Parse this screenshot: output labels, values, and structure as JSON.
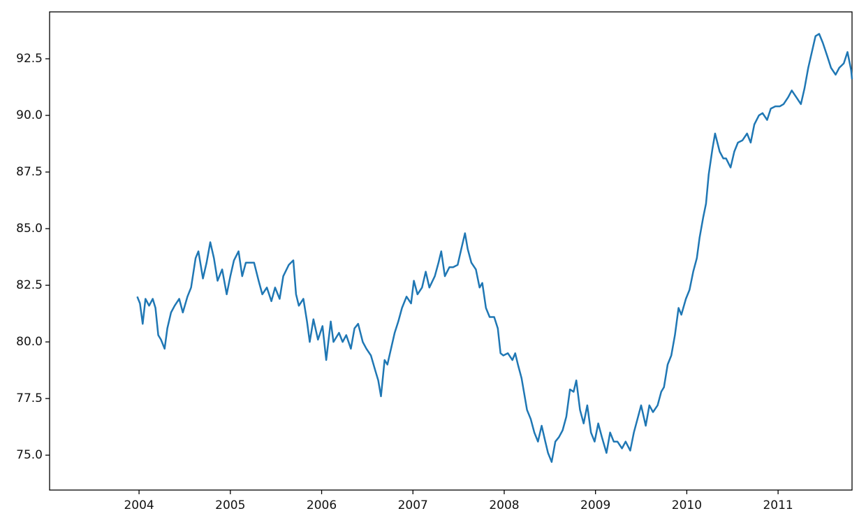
{
  "chart_data": {
    "type": "line",
    "x": [
      2003.98,
      2004.01,
      2004.04,
      2004.07,
      2004.11,
      2004.15,
      2004.18,
      2004.21,
      2004.24,
      2004.28,
      2004.31,
      2004.35,
      2004.39,
      2004.44,
      2004.48,
      2004.53,
      2004.57,
      2004.62,
      2004.65,
      2004.7,
      2004.74,
      2004.78,
      2004.82,
      2004.86,
      2004.91,
      2004.96,
      2005.0,
      2005.04,
      2005.09,
      2005.13,
      2005.17,
      2005.22,
      2005.26,
      2005.31,
      2005.35,
      2005.4,
      2005.45,
      2005.49,
      2005.54,
      2005.58,
      2005.64,
      2005.69,
      2005.72,
      2005.75,
      2005.8,
      2005.84,
      2005.87,
      2005.91,
      2005.96,
      2006.01,
      2006.05,
      2006.1,
      2006.13,
      2006.19,
      2006.23,
      2006.27,
      2006.32,
      2006.36,
      2006.4,
      2006.45,
      2006.49,
      2006.54,
      2006.59,
      2006.62,
      2006.65,
      2006.69,
      2006.72,
      2006.76,
      2006.8,
      2006.84,
      2006.88,
      2006.93,
      2006.98,
      2007.01,
      2007.05,
      2007.1,
      2007.14,
      2007.18,
      2007.24,
      2007.28,
      2007.31,
      2007.35,
      2007.4,
      2007.44,
      2007.49,
      2007.53,
      2007.57,
      2007.6,
      2007.64,
      2007.69,
      2007.73,
      2007.76,
      2007.8,
      2007.84,
      2007.89,
      2007.93,
      2007.96,
      2007.99,
      2008.04,
      2008.09,
      2008.12,
      2008.15,
      2008.19,
      2008.22,
      2008.25,
      2008.29,
      2008.33,
      2008.37,
      2008.41,
      2008.45,
      2008.48,
      2008.52,
      2008.56,
      2008.6,
      2008.64,
      2008.68,
      2008.72,
      2008.76,
      2008.79,
      2008.83,
      2008.87,
      2008.91,
      2008.95,
      2008.99,
      2009.03,
      2009.07,
      2009.12,
      2009.16,
      2009.2,
      2009.24,
      2009.29,
      2009.33,
      2009.38,
      2009.42,
      2009.46,
      2009.5,
      2009.55,
      2009.59,
      2009.63,
      2009.68,
      2009.72,
      2009.75,
      2009.79,
      2009.83,
      2009.87,
      2009.91,
      2009.94,
      2009.99,
      2010.03,
      2010.07,
      2010.11,
      2010.14,
      2010.18,
      2010.21,
      2010.24,
      2010.28,
      2010.31,
      2010.36,
      2010.4,
      2010.43,
      2010.48,
      2010.52,
      2010.56,
      2010.61,
      2010.66,
      2010.7,
      2010.74,
      2010.79,
      2010.83,
      2010.88,
      2010.92,
      2010.97,
      2011.02,
      2011.06,
      2011.11,
      2011.15,
      2011.2,
      2011.25,
      2011.29,
      2011.33,
      2011.37,
      2011.41,
      2011.45,
      2011.49,
      2011.54,
      2011.58,
      2011.63,
      2011.67,
      2011.72,
      2011.76,
      2011.8,
      2011.81
    ],
    "series": [
      {
        "color": "#1f77b4",
        "values": [
          82.0,
          81.7,
          80.8,
          81.9,
          81.6,
          81.9,
          81.5,
          80.3,
          80.1,
          79.7,
          80.6,
          81.3,
          81.6,
          81.9,
          81.3,
          82.0,
          82.4,
          83.7,
          84.0,
          82.8,
          83.5,
          84.4,
          83.7,
          82.7,
          83.2,
          82.1,
          82.9,
          83.6,
          84.0,
          82.9,
          83.5,
          83.5,
          83.5,
          82.7,
          82.1,
          82.4,
          81.8,
          82.4,
          81.9,
          82.9,
          83.4,
          83.6,
          82.1,
          81.6,
          81.9,
          80.9,
          80.0,
          81.0,
          80.1,
          80.7,
          79.2,
          80.9,
          80.0,
          80.4,
          80.0,
          80.3,
          79.7,
          80.6,
          80.8,
          80.0,
          79.7,
          79.4,
          78.7,
          78.3,
          77.6,
          79.2,
          79.0,
          79.7,
          80.4,
          80.9,
          81.5,
          82.0,
          81.7,
          82.7,
          82.1,
          82.4,
          83.1,
          82.4,
          82.9,
          83.5,
          84.0,
          82.9,
          83.3,
          83.3,
          83.4,
          84.1,
          84.8,
          84.1,
          83.5,
          83.2,
          82.4,
          82.6,
          81.5,
          81.1,
          81.1,
          80.6,
          79.5,
          79.4,
          79.5,
          79.2,
          79.5,
          79.0,
          78.4,
          77.7,
          77.0,
          76.6,
          76.0,
          75.6,
          76.3,
          75.6,
          75.1,
          74.7,
          75.6,
          75.8,
          76.1,
          76.7,
          77.9,
          77.8,
          78.3,
          77.0,
          76.4,
          77.2,
          76.0,
          75.6,
          76.4,
          75.8,
          75.1,
          76.0,
          75.6,
          75.6,
          75.3,
          75.6,
          75.2,
          76.0,
          76.6,
          77.2,
          76.3,
          77.2,
          76.9,
          77.2,
          77.8,
          78.0,
          79.0,
          79.4,
          80.3,
          81.5,
          81.2,
          81.9,
          82.3,
          83.1,
          83.7,
          84.6,
          85.5,
          86.1,
          87.4,
          88.5,
          89.2,
          88.4,
          88.1,
          88.1,
          87.7,
          88.4,
          88.8,
          88.9,
          89.2,
          88.8,
          89.6,
          90.0,
          90.1,
          89.8,
          90.3,
          90.4,
          90.4,
          90.5,
          90.8,
          91.1,
          90.8,
          90.5,
          91.2,
          92.1,
          92.8,
          93.5,
          93.6,
          93.2,
          92.6,
          92.1,
          91.8,
          92.1,
          92.3,
          92.8,
          92.0,
          91.6
        ]
      }
    ],
    "xlim": [
      2003.02,
      2011.81
    ],
    "xticks": [
      2004,
      2005,
      2006,
      2007,
      2008,
      2009,
      2010,
      2011
    ],
    "ylim": [
      73.46,
      94.57
    ],
    "yticks": [
      {
        "value": 75,
        "label": "75.0"
      },
      77.5,
      {
        "value": 80,
        "label": "80.0"
      },
      82.5,
      {
        "value": 85,
        "label": "85.0"
      },
      87.5,
      {
        "value": 90,
        "label": "90.0"
      },
      92.5
    ]
  }
}
